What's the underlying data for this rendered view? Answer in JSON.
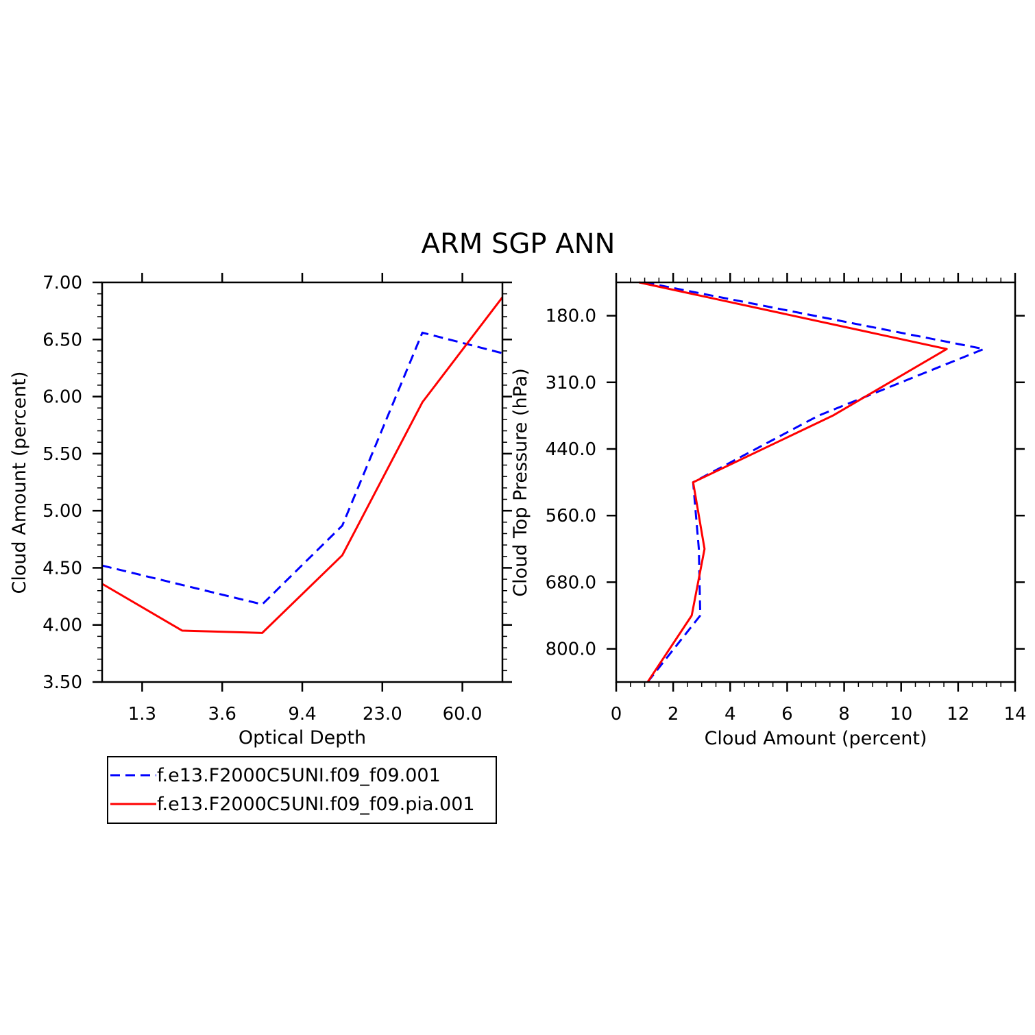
{
  "figure": {
    "title": "ARM SGP ANN"
  },
  "colors": {
    "series1": "#0000ff",
    "series2": "#ff0000",
    "axis": "#000000"
  },
  "legend": {
    "location": "below-left",
    "entries": [
      {
        "label": "f.e13.F2000C5UNI.f09_f09.001",
        "color": "#0000ff",
        "style": "dashed"
      },
      {
        "label": "f.e13.F2000C5UNI.f09_f09.pia.001",
        "color": "#ff0000",
        "style": "solid"
      }
    ]
  },
  "chart_data": [
    {
      "type": "line",
      "title": "",
      "xlabel": "Optical Depth",
      "ylabel": "Cloud Amount (percent)",
      "x_tick_labels": [
        "1.3",
        "3.6",
        "9.4",
        "23.0",
        "60.0"
      ],
      "x_categories": [
        0,
        1,
        2,
        3,
        4,
        5,
        6
      ],
      "y_tick_labels": [
        "3.50",
        "4.00",
        "4.50",
        "5.00",
        "5.50",
        "6.00",
        "6.50",
        "7.00"
      ],
      "ylim": [
        3.5,
        7.0
      ],
      "series": [
        {
          "name": "f.e13.F2000C5UNI.f09_f09.001",
          "style": "dashed",
          "values": [
            4.52,
            4.35,
            4.18,
            4.87,
            6.56,
            6.38
          ]
        },
        {
          "name": "f.e13.F2000C5UNI.f09_f09.pia.001",
          "style": "solid",
          "values": [
            4.36,
            3.95,
            3.93,
            4.61,
            5.95,
            6.87
          ]
        }
      ]
    },
    {
      "type": "line",
      "title": "",
      "xlabel": "Cloud Amount (percent)",
      "ylabel": "Cloud Top Pressure (hPa)",
      "x_tick_labels": [
        "0",
        "2",
        "4",
        "6",
        "8",
        "10",
        "12",
        "14"
      ],
      "xlim": [
        0,
        14
      ],
      "y_tick_labels": [
        "180.0",
        "310.0",
        "440.0",
        "560.0",
        "680.0",
        "800.0"
      ],
      "series": [
        {
          "name": "f.e13.F2000C5UNI.f09_f09.001",
          "style": "dashed",
          "points": [
            [
              1.0,
              0
            ],
            [
              12.9,
              1
            ],
            [
              7.1,
              2
            ],
            [
              2.7,
              3
            ],
            [
              2.9,
              4
            ],
            [
              2.95,
              5
            ],
            [
              1.1,
              6
            ]
          ]
        },
        {
          "name": "f.e13.F2000C5UNI.f09_f09.pia.001",
          "style": "solid",
          "points": [
            [
              0.8,
              0
            ],
            [
              11.6,
              1
            ],
            [
              7.6,
              2
            ],
            [
              2.7,
              3
            ],
            [
              3.1,
              4
            ],
            [
              2.65,
              5
            ],
            [
              1.1,
              6
            ]
          ]
        }
      ]
    }
  ]
}
